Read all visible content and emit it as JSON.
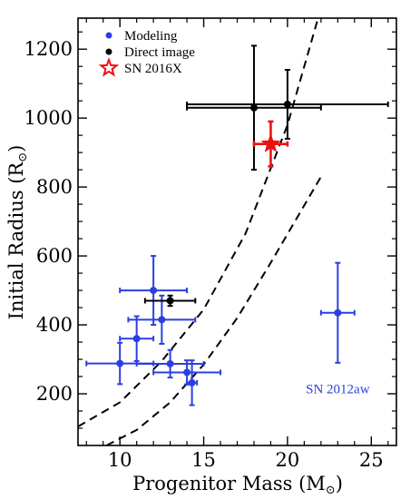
{
  "chart_data": {
    "type": "scatter",
    "xlabel": "Progenitor Mass (M",
    "xlabel_sub": "⊙",
    "xlabel_close": ")",
    "ylabel": "Initial Radius (R",
    "ylabel_sub": "⊙",
    "ylabel_close": ")",
    "xlim": [
      7.5,
      26.5
    ],
    "ylim": [
      50,
      1290
    ],
    "x_ticks": [
      10,
      15,
      20,
      25
    ],
    "y_ticks": [
      200,
      400,
      600,
      800,
      1000,
      1200
    ],
    "grid": false,
    "legend_position": "top-left",
    "colors": {
      "modeling": "#2b3fe0",
      "direct": "#000000",
      "sn2016x": "#ee1111"
    },
    "legend": [
      {
        "label": "Modeling",
        "marker": "circle",
        "color": "#2b3fe0"
      },
      {
        "label": "Direct image",
        "marker": "circle",
        "color": "#000000"
      },
      {
        "label": "SN 2016X",
        "marker": "star",
        "color": "#ee1111"
      }
    ],
    "series": [
      {
        "name": "Modeling",
        "color": "#2b3fe0",
        "points": [
          {
            "x": 10.0,
            "y": 288,
            "xerr": 2.0,
            "yerr_lo": 60,
            "yerr_hi": 60
          },
          {
            "x": 11.0,
            "y": 360,
            "xerr": 1.0,
            "yerr_lo": 65,
            "yerr_hi": 65
          },
          {
            "x": 12.0,
            "y": 500,
            "xerr": 2.0,
            "yerr_lo": 100,
            "yerr_hi": 100
          },
          {
            "x": 12.5,
            "y": 415,
            "xerr": 2.0,
            "yerr_lo": 70,
            "yerr_hi": 70
          },
          {
            "x": 13.0,
            "y": 287,
            "xerr": 2.0,
            "yerr_lo": 40,
            "yerr_hi": 40
          },
          {
            "x": 14.0,
            "y": 262,
            "xerr": 2.0,
            "yerr_lo": 35,
            "yerr_hi": 35
          },
          {
            "x": 14.3,
            "y": 232,
            "xerr": 0.3,
            "yerr_lo": 65,
            "yerr_hi": 65
          },
          {
            "x": 23.0,
            "y": 435,
            "xerr": 1.0,
            "yerr_lo": 145,
            "yerr_hi": 145
          }
        ]
      },
      {
        "name": "Direct image",
        "color": "#000000",
        "points": [
          {
            "x": 13.0,
            "y": 470,
            "xerr": 1.5,
            "yerr_lo": 15,
            "yerr_hi": 15
          },
          {
            "x": 18.0,
            "y": 1030,
            "xerr_lo": 4.0,
            "xerr_hi": 4.0,
            "yerr_lo": 180,
            "yerr_hi": 180
          },
          {
            "x": 20.0,
            "y": 1040,
            "xerr_lo": 6.0,
            "xerr_hi": 6.0,
            "yerr_lo": 100,
            "yerr_hi": 100
          }
        ]
      },
      {
        "name": "SN 2016X",
        "color": "#ee1111",
        "points": [
          {
            "x": 19.0,
            "y": 925,
            "xerr": 1.0,
            "yerr_lo": 65,
            "yerr_hi": 65
          }
        ]
      }
    ],
    "curves": [
      {
        "style": "dashed",
        "points": [
          [
            7.5,
            105
          ],
          [
            10,
            175
          ],
          [
            12.5,
            295
          ],
          [
            15,
            445
          ],
          [
            17.5,
            665
          ],
          [
            20,
            980
          ],
          [
            22,
            1320
          ]
        ]
      },
      {
        "style": "dashed",
        "points": [
          [
            9.2,
            50
          ],
          [
            11,
            95
          ],
          [
            13,
            175
          ],
          [
            15,
            285
          ],
          [
            17,
            420
          ],
          [
            19,
            580
          ],
          [
            22,
            830
          ]
        ]
      }
    ],
    "annotations": [
      {
        "text": "SN 2012aw",
        "x": 23.0,
        "y": 215,
        "color": "#2b3fe0"
      }
    ]
  }
}
